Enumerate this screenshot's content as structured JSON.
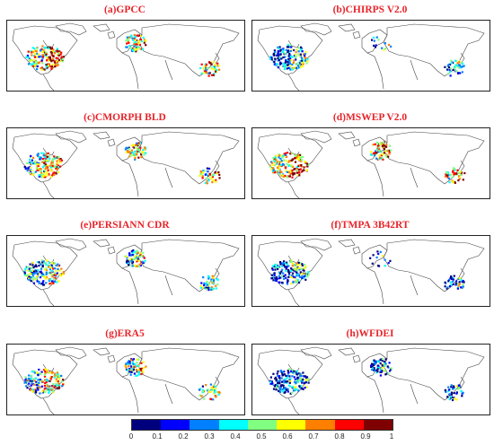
{
  "panels": [
    {
      "title": "(a)GPCC",
      "seed": 11,
      "bias": 0.62
    },
    {
      "title": "(b)CHIRPS V2.0",
      "seed": 23,
      "bias": 0.3,
      "sparse_eu": true
    },
    {
      "title": "(c)CMORPH BLD",
      "seed": 37,
      "bias": 0.55
    },
    {
      "title": "(d)MSWEP V2.0",
      "seed": 41,
      "bias": 0.68
    },
    {
      "title": "(e)PERSIANN CDR",
      "seed": 53,
      "bias": 0.4
    },
    {
      "title": "(f)TMPA 3B42RT",
      "seed": 67,
      "bias": 0.25,
      "sparse_eu": true
    },
    {
      "title": "(g)ERA5",
      "seed": 79,
      "bias": 0.52
    },
    {
      "title": "(h)WFDEI",
      "seed": 83,
      "bias": 0.2
    }
  ],
  "colorbar": {
    "ticks": [
      "0",
      "0.1",
      "0.2",
      "0.3",
      "0.4",
      "0.5",
      "0.6",
      "0.7",
      "0.8",
      "0.9",
      "1"
    ],
    "colors": [
      "#00007f",
      "#0000ff",
      "#0080ff",
      "#00ffff",
      "#80ff80",
      "#ffff00",
      "#ff8000",
      "#ff0000",
      "#7f0000"
    ]
  }
}
